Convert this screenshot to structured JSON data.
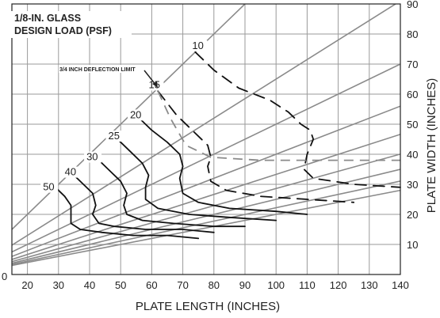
{
  "chart_data": {
    "type": "line",
    "title": [
      "1/8-IN. GLASS",
      "DESIGN LOAD (PSF)"
    ],
    "xlabel": "PLATE LENGTH (INCHES)",
    "ylabel": "PLATE WIDTH (INCHES)",
    "xlim": [
      15,
      140
    ],
    "ylim": [
      0,
      90
    ],
    "xticks": [
      20,
      30,
      40,
      50,
      60,
      70,
      80,
      90,
      100,
      110,
      120,
      130,
      140
    ],
    "yticks": [
      10,
      20,
      30,
      40,
      50,
      60,
      70,
      80,
      90
    ],
    "origin_label": "0",
    "grid": true,
    "aspect_ratio_lines": [
      1.0,
      0.65,
      0.5,
      0.4,
      0.333,
      0.286,
      0.25,
      0.222,
      0.2
    ],
    "deflection_limit": {
      "label": "3/4 INCH DEFLECTION LIMIT",
      "points": [
        [
          62,
          61
        ],
        [
          66,
          52
        ],
        [
          71,
          43
        ],
        [
          79,
          39
        ],
        [
          95,
          38
        ],
        [
          140,
          38
        ]
      ]
    },
    "series": [
      {
        "name": "10",
        "label_at": [
          73,
          75
        ],
        "style": "dashed",
        "points": [
          [
            74,
            74
          ],
          [
            80,
            68
          ],
          [
            88,
            62
          ],
          [
            98,
            58
          ],
          [
            104,
            54
          ],
          [
            108,
            50
          ],
          [
            111,
            48
          ],
          [
            112,
            45
          ],
          [
            110,
            40
          ],
          [
            109,
            35
          ],
          [
            112,
            32
          ],
          [
            125,
            30
          ],
          [
            140,
            29
          ]
        ]
      },
      {
        "name": "15",
        "label_at": [
          59,
          62
        ],
        "style": "dashed",
        "points": [
          [
            62,
            61
          ],
          [
            68,
            53
          ],
          [
            73,
            48
          ],
          [
            78,
            43
          ],
          [
            79,
            39
          ],
          [
            78,
            36
          ],
          [
            79,
            31
          ],
          [
            84,
            28
          ],
          [
            95,
            26
          ],
          [
            110,
            25
          ],
          [
            125,
            24
          ]
        ]
      },
      {
        "name": "20",
        "label_at": [
          53,
          52
        ],
        "style": "solid",
        "points": [
          [
            55,
            53
          ],
          [
            60,
            48
          ],
          [
            65,
            44
          ],
          [
            69,
            40
          ],
          [
            70,
            36
          ],
          [
            69,
            32
          ],
          [
            70,
            27
          ],
          [
            75,
            24
          ],
          [
            85,
            22
          ],
          [
            100,
            21
          ],
          [
            110,
            20
          ]
        ]
      },
      {
        "name": "25",
        "label_at": [
          46,
          45
        ],
        "style": "solid",
        "points": [
          [
            48,
            46
          ],
          [
            53,
            41
          ],
          [
            57,
            37
          ],
          [
            59,
            33
          ],
          [
            58,
            29
          ],
          [
            58,
            25
          ],
          [
            62,
            22
          ],
          [
            72,
            20
          ],
          [
            85,
            19
          ],
          [
            100,
            18
          ]
        ]
      },
      {
        "name": "30",
        "label_at": [
          39,
          38
        ],
        "style": "solid",
        "points": [
          [
            41,
            40
          ],
          [
            46,
            35
          ],
          [
            50,
            31
          ],
          [
            52,
            27
          ],
          [
            51,
            23
          ],
          [
            52,
            20
          ],
          [
            57,
            18
          ],
          [
            67,
            17
          ],
          [
            80,
            16
          ],
          [
            90,
            16
          ]
        ]
      },
      {
        "name": "40",
        "label_at": [
          32,
          33
        ],
        "style": "solid",
        "points": [
          [
            34,
            34
          ],
          [
            38,
            30
          ],
          [
            41,
            27
          ],
          [
            42,
            23
          ],
          [
            41,
            20
          ],
          [
            43,
            17
          ],
          [
            48,
            16
          ],
          [
            58,
            15
          ],
          [
            70,
            15
          ],
          [
            80,
            14
          ]
        ]
      },
      {
        "name": "50",
        "label_at": [
          25,
          28
        ],
        "style": "solid",
        "points": [
          [
            29,
            29
          ],
          [
            32,
            26
          ],
          [
            34,
            23
          ],
          [
            34,
            20
          ],
          [
            34,
            17
          ],
          [
            37,
            15
          ],
          [
            44,
            14
          ],
          [
            54,
            13
          ],
          [
            65,
            13
          ],
          [
            75,
            12
          ]
        ]
      }
    ]
  }
}
